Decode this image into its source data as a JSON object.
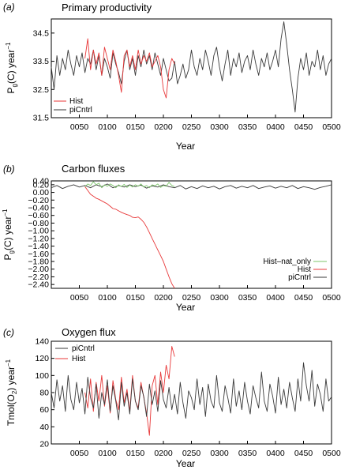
{
  "chart_data": [
    {
      "type": "line",
      "panel_label": "(a)",
      "title": "Primary productivity",
      "xlabel": "Year",
      "ylabel": "P",
      "ylabel_sub": "g",
      "ylabel_rest": "(C) year",
      "ylabel_sup": "−1",
      "xlim": [
        0,
        500
      ],
      "ylim": [
        31.5,
        35.0
      ],
      "xticks": [
        "0050",
        "0100",
        "0150",
        "0200",
        "0250",
        "0300",
        "0350",
        "0400",
        "0450",
        "0500"
      ],
      "yticks": [
        "31.5",
        "32.5",
        "33.5",
        "34.5"
      ],
      "ytick_values": [
        31.5,
        32.5,
        33.5,
        34.5
      ],
      "legend_position": "bottom-left",
      "series": [
        {
          "name": "Hist",
          "color": "#e8393a",
          "x": [
            60,
            65,
            70,
            75,
            80,
            85,
            90,
            95,
            100,
            105,
            110,
            115,
            120,
            125,
            130,
            135,
            140,
            145,
            150,
            155,
            160,
            165,
            170,
            175,
            180,
            185,
            190,
            195,
            200,
            205,
            210,
            215,
            220
          ],
          "y": [
            33.6,
            34.3,
            33.2,
            33.9,
            33.4,
            33.8,
            33.0,
            34.0,
            33.6,
            33.2,
            33.9,
            33.5,
            33.0,
            32.4,
            33.7,
            33.9,
            33.3,
            33.7,
            33.2,
            33.9,
            33.4,
            33.7,
            33.5,
            33.8,
            33.3,
            33.5,
            33.7,
            33.3,
            32.5,
            32.2,
            33.2,
            33.6,
            33.4
          ]
        },
        {
          "name": "piCntrl",
          "color": "#3a3a3a",
          "x": [
            0,
            5,
            10,
            15,
            20,
            25,
            30,
            35,
            40,
            45,
            50,
            55,
            60,
            65,
            70,
            75,
            80,
            85,
            90,
            95,
            100,
            105,
            110,
            115,
            120,
            125,
            130,
            135,
            140,
            145,
            150,
            155,
            160,
            165,
            170,
            175,
            180,
            185,
            190,
            195,
            200,
            205,
            210,
            215,
            220,
            225,
            230,
            235,
            240,
            245,
            250,
            255,
            260,
            265,
            270,
            275,
            280,
            285,
            290,
            295,
            300,
            305,
            310,
            315,
            320,
            325,
            330,
            335,
            340,
            345,
            350,
            355,
            360,
            365,
            370,
            375,
            380,
            385,
            390,
            395,
            400,
            405,
            410,
            415,
            420,
            425,
            430,
            435,
            440,
            445,
            450,
            455,
            460,
            465,
            470,
            475,
            480,
            485,
            490,
            495,
            500
          ],
          "y": [
            33.3,
            32.5,
            33.7,
            33.0,
            33.6,
            33.2,
            33.9,
            33.4,
            33.0,
            33.7,
            33.3,
            33.8,
            33.1,
            33.6,
            33.4,
            33.9,
            33.2,
            33.7,
            33.0,
            33.6,
            33.3,
            32.9,
            33.8,
            33.4,
            33.1,
            32.7,
            33.5,
            33.9,
            33.2,
            33.6,
            33.0,
            33.7,
            33.3,
            33.9,
            33.4,
            33.7,
            33.2,
            33.8,
            33.4,
            33.0,
            33.6,
            33.2,
            32.8,
            32.9,
            33.5,
            32.7,
            33.0,
            33.4,
            32.9,
            33.2,
            33.9,
            33.3,
            33.0,
            33.6,
            33.2,
            33.9,
            33.5,
            33.0,
            33.7,
            34.0,
            33.3,
            32.8,
            33.4,
            33.9,
            33.0,
            33.6,
            33.3,
            33.8,
            33.1,
            33.5,
            33.7,
            33.2,
            33.9,
            33.4,
            33.0,
            33.6,
            33.3,
            33.8,
            33.2,
            33.5,
            33.9,
            33.3,
            34.3,
            34.9,
            34.1,
            33.2,
            32.5,
            31.7,
            32.9,
            33.6,
            33.2,
            33.8,
            33.0,
            33.5,
            33.3,
            33.9,
            33.2,
            33.7,
            33.0,
            33.4,
            33.6
          ]
        }
      ]
    },
    {
      "type": "line",
      "panel_label": "(b)",
      "title": "Carbon fluxes",
      "xlabel": "Year",
      "ylabel": "P",
      "ylabel_sub": "g",
      "ylabel_rest": "(C) year",
      "ylabel_sup": "−1",
      "xlim": [
        0,
        500
      ],
      "ylim": [
        -2.5,
        0.3
      ],
      "xticks": [
        "0050",
        "0100",
        "0150",
        "0200",
        "0250",
        "0300",
        "0350",
        "0400",
        "0450",
        "0500"
      ],
      "yticks": [
        "0.40",
        "0.20",
        "0.00",
        "−0.20",
        "−0.40",
        "−0.60",
        "−0.80",
        "−1.00",
        "−1.20",
        "−1.40",
        "−1.60",
        "−1.80",
        "−2.00",
        "−2.20",
        "−2.40"
      ],
      "ytick_values": [
        0.4,
        0.2,
        0.0,
        -0.2,
        -0.4,
        -0.6,
        -0.8,
        -1.0,
        -1.2,
        -1.4,
        -1.6,
        -1.8,
        -2.0,
        -2.2,
        -2.4
      ],
      "legend_position": "bottom-right",
      "series": [
        {
          "name": "Hist–nat_only",
          "color": "#7cc46a",
          "x": [
            60,
            65,
            70,
            75,
            80,
            85,
            90,
            95,
            100,
            105,
            110,
            115,
            120,
            125,
            130,
            135,
            140,
            145,
            150,
            155,
            160,
            165,
            170,
            175,
            180,
            185,
            190,
            195,
            200,
            205,
            210,
            215,
            220
          ],
          "y": [
            0.15,
            0.22,
            0.18,
            0.28,
            0.2,
            0.24,
            0.12,
            0.2,
            0.16,
            0.22,
            0.18,
            0.12,
            0.2,
            0.15,
            0.21,
            0.13,
            0.19,
            0.14,
            0.2,
            0.16,
            0.22,
            0.14,
            0.18,
            0.12,
            0.2,
            0.17,
            0.22,
            0.13,
            0.18,
            0.16,
            0.26,
            0.18,
            0.15
          ]
        },
        {
          "name": "Hist",
          "color": "#e8393a",
          "x": [
            60,
            65,
            70,
            75,
            80,
            85,
            90,
            95,
            100,
            105,
            110,
            115,
            120,
            125,
            130,
            135,
            140,
            145,
            150,
            155,
            160,
            165,
            170,
            175,
            180,
            185,
            190,
            195,
            200,
            205,
            210,
            215,
            220
          ],
          "y": [
            0.15,
            0.05,
            -0.05,
            -0.1,
            -0.15,
            -0.18,
            -0.22,
            -0.26,
            -0.3,
            -0.36,
            -0.42,
            -0.44,
            -0.48,
            -0.52,
            -0.55,
            -0.58,
            -0.6,
            -0.65,
            -0.66,
            -0.64,
            -0.7,
            -0.78,
            -0.9,
            -1.05,
            -1.2,
            -1.35,
            -1.5,
            -1.65,
            -1.8,
            -2.0,
            -2.2,
            -2.38,
            -2.5
          ]
        },
        {
          "name": "piCntrl",
          "color": "#3a3a3a",
          "x": [
            0,
            10,
            20,
            30,
            40,
            50,
            60,
            70,
            80,
            90,
            100,
            110,
            120,
            130,
            140,
            150,
            160,
            170,
            180,
            190,
            200,
            210,
            220,
            230,
            240,
            250,
            260,
            270,
            280,
            290,
            300,
            310,
            320,
            330,
            340,
            350,
            360,
            370,
            380,
            390,
            400,
            410,
            420,
            430,
            440,
            450,
            460,
            470,
            480,
            490,
            500
          ],
          "y": [
            0.12,
            0.18,
            0.1,
            0.16,
            0.2,
            0.14,
            0.18,
            0.12,
            0.2,
            0.15,
            0.22,
            0.12,
            0.18,
            0.14,
            0.2,
            0.15,
            0.19,
            0.11,
            0.17,
            0.14,
            0.2,
            0.15,
            0.12,
            0.18,
            0.09,
            0.15,
            0.1,
            0.17,
            0.12,
            0.16,
            0.09,
            0.15,
            0.18,
            0.11,
            0.16,
            0.12,
            0.18,
            0.1,
            0.14,
            0.17,
            0.11,
            0.16,
            0.12,
            0.18,
            0.1,
            0.15,
            0.12,
            0.08,
            0.13,
            0.16,
            0.2
          ]
        }
      ]
    },
    {
      "type": "line",
      "panel_label": "(c)",
      "title": "Oxygen flux",
      "xlabel": "Year",
      "ylabel": "Tmol(O",
      "ylabel_sub": "2",
      "ylabel_rest": ") year",
      "ylabel_sup": "−1",
      "xlim": [
        0,
        500
      ],
      "ylim": [
        20,
        140
      ],
      "xticks": [
        "0050",
        "0100",
        "0150",
        "0200",
        "0250",
        "0300",
        "0350",
        "0400",
        "0450",
        "0500"
      ],
      "yticks": [
        "20",
        "40",
        "60",
        "80",
        "100",
        "120",
        "140"
      ],
      "ytick_values": [
        20,
        40,
        60,
        80,
        100,
        120,
        140
      ],
      "legend_position": "top-left",
      "series": [
        {
          "name": "piCntrl",
          "color": "#3a3a3a",
          "x": [
            0,
            5,
            10,
            15,
            20,
            25,
            30,
            35,
            40,
            45,
            50,
            55,
            60,
            65,
            70,
            75,
            80,
            85,
            90,
            95,
            100,
            105,
            110,
            115,
            120,
            125,
            130,
            135,
            140,
            145,
            150,
            155,
            160,
            165,
            170,
            175,
            180,
            185,
            190,
            195,
            200,
            205,
            210,
            215,
            220,
            225,
            230,
            235,
            240,
            245,
            250,
            255,
            260,
            265,
            270,
            275,
            280,
            285,
            290,
            295,
            300,
            305,
            310,
            315,
            320,
            325,
            330,
            335,
            340,
            345,
            350,
            355,
            360,
            365,
            370,
            375,
            380,
            385,
            390,
            395,
            400,
            405,
            410,
            415,
            420,
            425,
            430,
            435,
            440,
            445,
            450,
            455,
            460,
            465,
            470,
            475,
            480,
            485,
            490,
            495,
            500
          ],
          "y": [
            80,
            62,
            95,
            70,
            88,
            58,
            100,
            72,
            60,
            92,
            68,
            85,
            55,
            98,
            74,
            62,
            90,
            50,
            80,
            66,
            95,
            58,
            88,
            70,
            48,
            92,
            64,
            80,
            55,
            96,
            70,
            60,
            88,
            75,
            52,
            90,
            66,
            82,
            58,
            94,
            72,
            62,
            86,
            60,
            78,
            55,
            92,
            68,
            50,
            82,
            74,
            60,
            96,
            66,
            86,
            52,
            90,
            70,
            62,
            100,
            68,
            58,
            88,
            74,
            56,
            96,
            64,
            82,
            60,
            92,
            70,
            55,
            88,
            74,
            62,
            104,
            70,
            58,
            90,
            76,
            56,
            98,
            66,
            84,
            62,
            92,
            74,
            58,
            96,
            70,
            115,
            88,
            70,
            106,
            64,
            90,
            78,
            58,
            96,
            70,
            75
          ]
        },
        {
          "name": "Hist",
          "color": "#e8393a",
          "x": [
            60,
            65,
            70,
            75,
            80,
            85,
            90,
            95,
            100,
            105,
            110,
            115,
            120,
            125,
            130,
            135,
            140,
            145,
            150,
            155,
            160,
            165,
            170,
            175,
            180,
            185,
            190,
            195,
            200,
            205,
            210,
            215,
            220
          ],
          "y": [
            80,
            62,
            96,
            58,
            92,
            70,
            100,
            64,
            88,
            56,
            94,
            72,
            60,
            98,
            68,
            84,
            58,
            100,
            70,
            62,
            92,
            74,
            56,
            30,
            88,
            100,
            66,
            104,
            80,
            112,
            96,
            134,
            122
          ]
        }
      ]
    }
  ]
}
